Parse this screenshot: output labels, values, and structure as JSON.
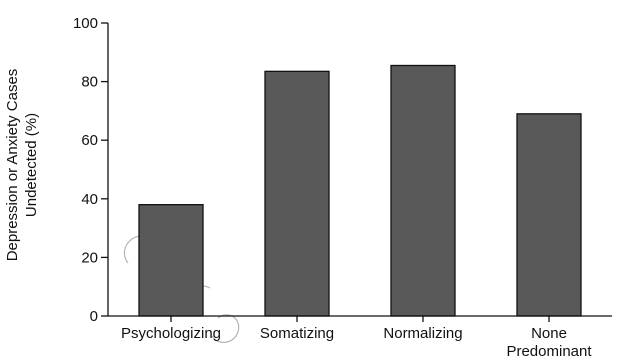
{
  "chart_data": {
    "type": "bar",
    "categories": [
      "Psychologizing",
      "Somatizing",
      "Normalizing",
      "None Predominant"
    ],
    "category_lines": [
      [
        "Psychologizing"
      ],
      [
        "Somatizing"
      ],
      [
        "Normalizing"
      ],
      [
        "None",
        "Predominant"
      ]
    ],
    "values": [
      38,
      83.5,
      85.5,
      69
    ],
    "title": "",
    "xlabel": "",
    "ylabel": "Depression or Anxiety Cases Undetected (%)",
    "ylabel_lines": [
      "Depression or Anxiety Cases",
      "Undetected (%)"
    ],
    "ylim": [
      0,
      100
    ],
    "yticks": [
      0,
      20,
      40,
      60,
      80,
      100
    ],
    "grid": false,
    "legend": "none",
    "colors": {
      "bar": "#595959",
      "axis": "#111111"
    }
  }
}
